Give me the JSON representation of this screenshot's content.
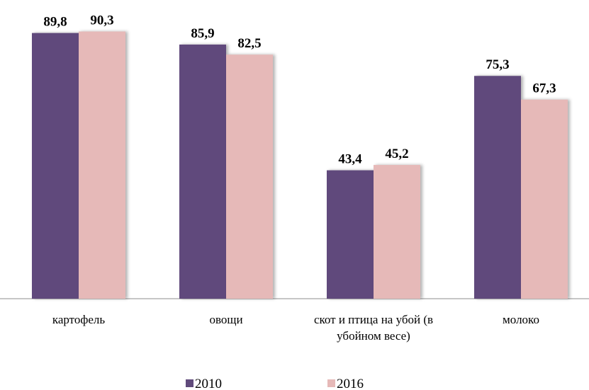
{
  "chart_data": {
    "type": "bar",
    "categories": [
      "картофель",
      "овощи",
      "скот и птица на убой (в убойном весе)",
      "молоко"
    ],
    "series": [
      {
        "name": "2010",
        "color": "#604a7b",
        "values": [
          89.8,
          85.9,
          43.4,
          75.3
        ],
        "value_labels": [
          "89,8",
          "85,9",
          "43,4",
          "75,3"
        ]
      },
      {
        "name": "2016",
        "color": "#e6b9b8",
        "values": [
          90.3,
          82.5,
          45.2,
          67.3
        ],
        "value_labels": [
          "90,3",
          "82,5",
          "45,2",
          "67,3"
        ]
      }
    ]
  }
}
